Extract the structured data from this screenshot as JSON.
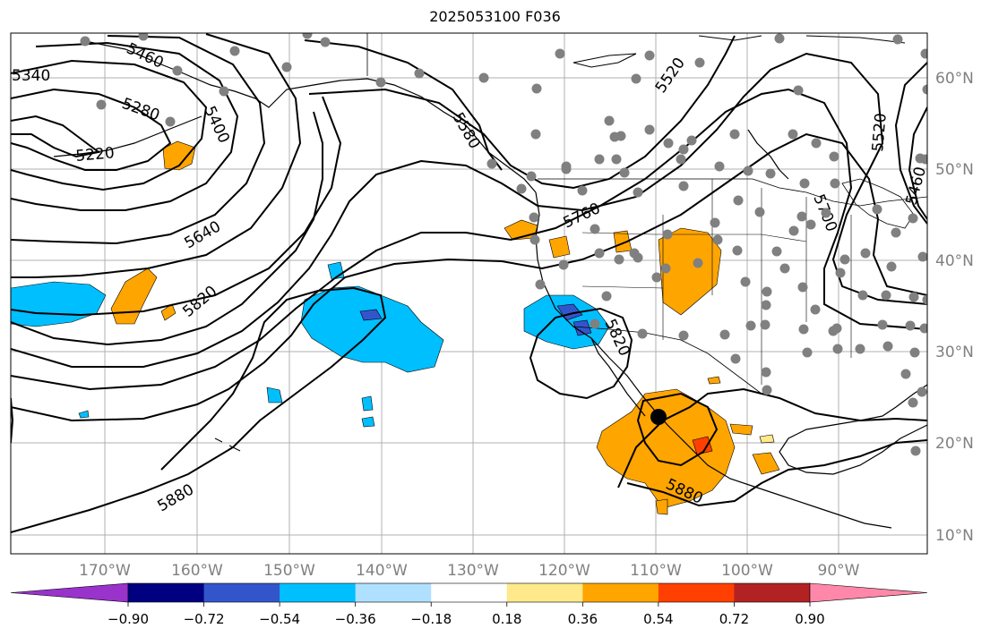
{
  "title": "2025053100 F036",
  "longitude_labels": [
    "170°W",
    "160°W",
    "150°W",
    "140°W",
    "130°W",
    "120°W",
    "110°W",
    "100°W",
    "90°W"
  ],
  "latitude_labels": [
    "60°N",
    "50°N",
    "40°N",
    "30°N",
    "20°N",
    "10°N"
  ],
  "contour_labels": [
    "5340",
    "5460",
    "5280",
    "5400",
    "5220",
    "5580",
    "5520",
    "5520",
    "5460",
    "5700",
    "5640",
    "5760",
    "5820",
    "5820",
    "5880",
    "5880"
  ],
  "colorbar": {
    "ticks": [
      "−0.90",
      "−0.72",
      "−0.54",
      "−0.36",
      "−0.18",
      "0.18",
      "0.36",
      "0.54",
      "0.72",
      "0.90"
    ],
    "colors": [
      "#9933cc",
      "#000080",
      "#3355cc",
      "#00bfff",
      "#b0e0ff",
      "#ffffff",
      "#ffe98a",
      "#ffa500",
      "#ff4000",
      "#b22222",
      "#ff88aa"
    ]
  },
  "colors": {
    "positive": "#ffa500",
    "positive_strong": "#ff4000",
    "negative": "#00bfff",
    "negative_strong": "#3355cc",
    "station": "#808080",
    "grid": "#b0b0b0",
    "tick_text": "#808080"
  }
}
